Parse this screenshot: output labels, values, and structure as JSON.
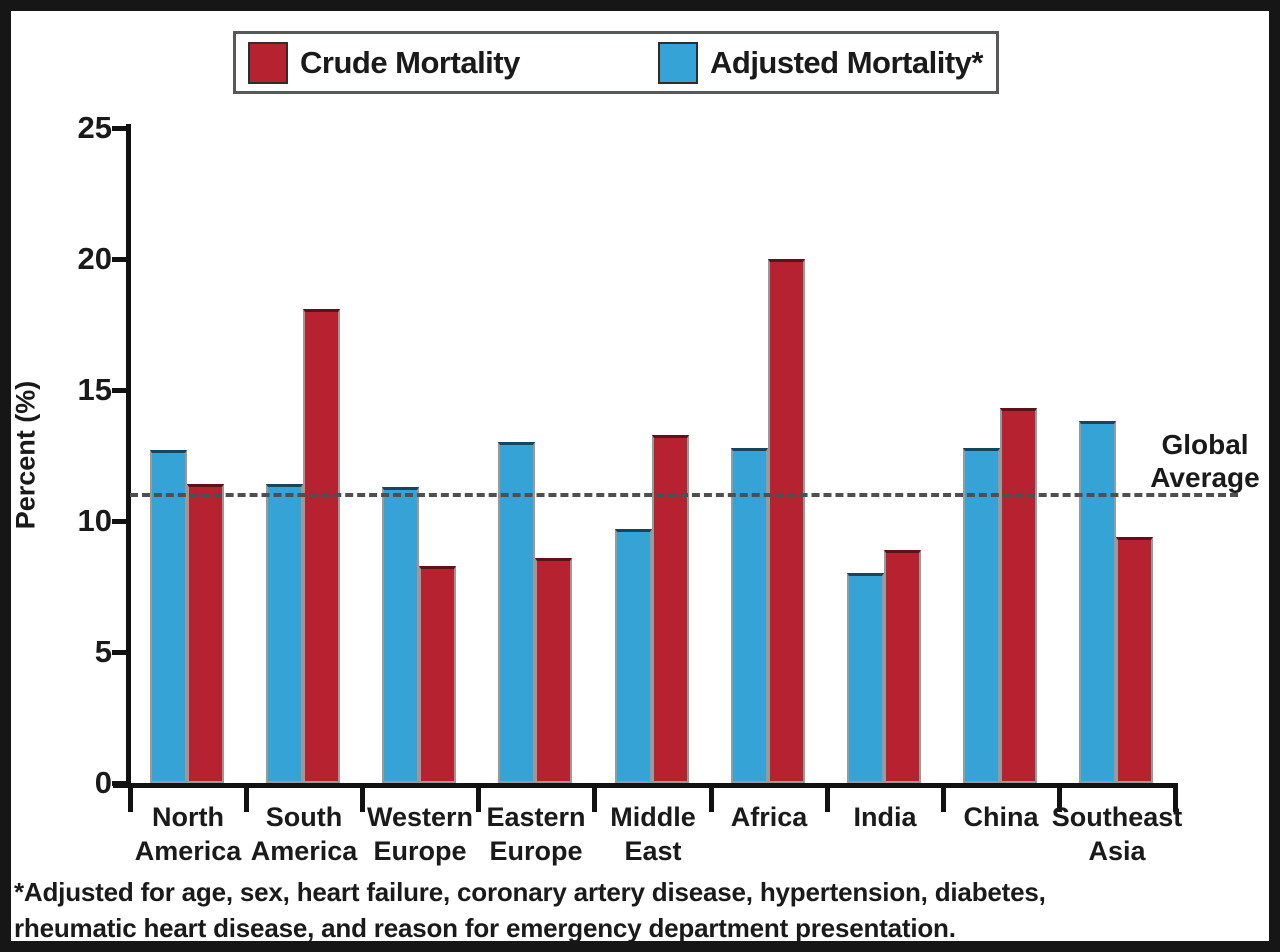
{
  "legend": {
    "crude_label": "Crude Mortality",
    "adjusted_label": "Adjusted Mortality*"
  },
  "colors": {
    "crude": "#b6222f",
    "adjusted": "#35a3d6",
    "axis": "#111111",
    "reference_line": "#4f4f4f"
  },
  "footnote": {
    "line1": "*Adjusted for age, sex, heart failure, coronary artery disease, hypertension, diabetes,",
    "line2": "rheumatic heart disease, and reason for emergency department presentation."
  },
  "chart_data": {
    "type": "bar",
    "title": "",
    "ylabel": "Percent (%)",
    "xlabel": "",
    "ylim": [
      0,
      25
    ],
    "yticks": [
      0,
      5,
      10,
      15,
      20,
      25
    ],
    "grid": false,
    "legend_position": "top",
    "categories": [
      "North\nAmerica",
      "South\nAmerica",
      "Western\nEurope",
      "Eastern\nEurope",
      "Middle\nEast",
      "Africa",
      "India",
      "China",
      "Southeast\nAsia"
    ],
    "series": [
      {
        "name": "Adjusted Mortality*",
        "key": "adjusted",
        "color": "#35a3d6",
        "values": [
          12.7,
          11.4,
          11.3,
          13.0,
          9.7,
          12.8,
          8.0,
          12.8,
          13.8
        ]
      },
      {
        "name": "Crude Mortality",
        "key": "crude",
        "color": "#b6222f",
        "values": [
          11.4,
          18.1,
          8.3,
          8.6,
          13.3,
          20.0,
          8.9,
          14.3,
          9.4
        ]
      }
    ],
    "reference_line": {
      "label": "Global Average",
      "label_line1": "Global",
      "label_line2": "Average",
      "value": 11
    }
  }
}
